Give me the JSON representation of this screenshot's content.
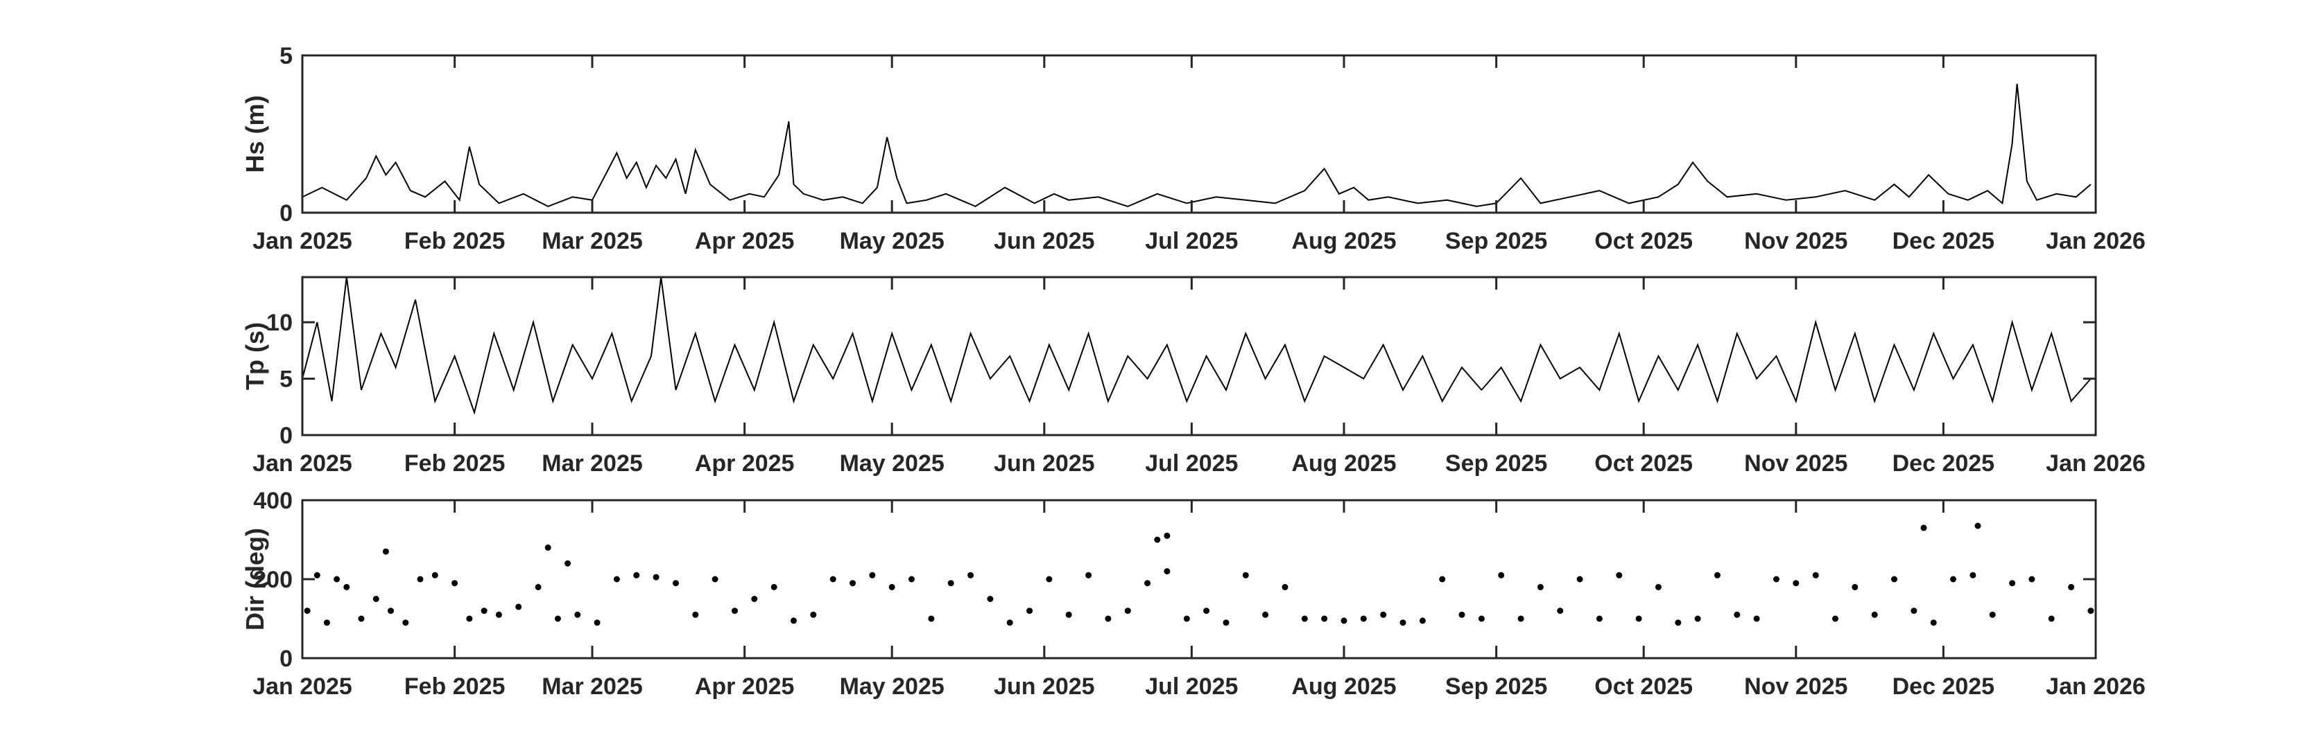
{
  "chart_data": [
    {
      "type": "line",
      "ylabel": "Hs (m)",
      "ylim": [
        0,
        5
      ],
      "yticks": [
        0,
        5
      ],
      "xlim": [
        "2025-01-01",
        "2026-01-01"
      ],
      "xtick_labels": [
        "Jan 2025",
        "Feb 2025",
        "Mar 2025",
        "Apr 2025",
        "May 2025",
        "Jun 2025",
        "Jul 2025",
        "Aug 2025",
        "Sep 2025",
        "Oct 2025",
        "Nov 2025",
        "Dec 2025",
        "Jan 2026"
      ],
      "color": "#000000",
      "series": [
        {
          "x": [
            "2025-01-01",
            "2025-01-05",
            "2025-01-10",
            "2025-01-14",
            "2025-01-16",
            "2025-01-18",
            "2025-01-20",
            "2025-01-23",
            "2025-01-26",
            "2025-01-30",
            "2025-02-02",
            "2025-02-04",
            "2025-02-06",
            "2025-02-10",
            "2025-02-15",
            "2025-02-20",
            "2025-02-25",
            "2025-03-01",
            "2025-03-04",
            "2025-03-06",
            "2025-03-08",
            "2025-03-10",
            "2025-03-12",
            "2025-03-14",
            "2025-03-16",
            "2025-03-18",
            "2025-03-20",
            "2025-03-22",
            "2025-03-25",
            "2025-03-29",
            "2025-04-02",
            "2025-04-05",
            "2025-04-08",
            "2025-04-10",
            "2025-04-11",
            "2025-04-13",
            "2025-04-17",
            "2025-04-21",
            "2025-04-25",
            "2025-04-28",
            "2025-04-30",
            "2025-05-02",
            "2025-05-04",
            "2025-05-08",
            "2025-05-12",
            "2025-05-18",
            "2025-05-24",
            "2025-05-30",
            "2025-06-03",
            "2025-06-06",
            "2025-06-12",
            "2025-06-18",
            "2025-06-24",
            "2025-06-30",
            "2025-07-06",
            "2025-07-12",
            "2025-07-18",
            "2025-07-24",
            "2025-07-28",
            "2025-07-31",
            "2025-08-03",
            "2025-08-06",
            "2025-08-10",
            "2025-08-16",
            "2025-08-22",
            "2025-08-28",
            "2025-09-01",
            "2025-09-06",
            "2025-09-10",
            "2025-09-16",
            "2025-09-22",
            "2025-09-28",
            "2025-10-04",
            "2025-10-08",
            "2025-10-11",
            "2025-10-14",
            "2025-10-18",
            "2025-10-24",
            "2025-10-30",
            "2025-11-05",
            "2025-11-11",
            "2025-11-17",
            "2025-11-21",
            "2025-11-24",
            "2025-11-28",
            "2025-12-02",
            "2025-12-06",
            "2025-12-10",
            "2025-12-13",
            "2025-12-15",
            "2025-12-16",
            "2025-12-18",
            "2025-12-20",
            "2025-12-24",
            "2025-12-28",
            "2025-12-31"
          ],
          "y": [
            0.5,
            0.8,
            0.4,
            1.1,
            1.8,
            1.2,
            1.6,
            0.7,
            0.5,
            1.0,
            0.4,
            2.1,
            0.9,
            0.3,
            0.6,
            0.2,
            0.5,
            0.4,
            1.3,
            1.9,
            1.1,
            1.6,
            0.8,
            1.5,
            1.1,
            1.7,
            0.6,
            2.0,
            0.9,
            0.4,
            0.6,
            0.5,
            1.2,
            2.9,
            0.9,
            0.6,
            0.4,
            0.5,
            0.3,
            0.8,
            2.4,
            1.1,
            0.3,
            0.4,
            0.6,
            0.2,
            0.8,
            0.3,
            0.6,
            0.4,
            0.5,
            0.2,
            0.6,
            0.3,
            0.5,
            0.4,
            0.3,
            0.7,
            1.4,
            0.6,
            0.8,
            0.4,
            0.5,
            0.3,
            0.4,
            0.2,
            0.3,
            1.1,
            0.3,
            0.5,
            0.7,
            0.3,
            0.5,
            0.9,
            1.6,
            1.0,
            0.5,
            0.6,
            0.4,
            0.5,
            0.7,
            0.4,
            0.9,
            0.5,
            1.2,
            0.6,
            0.4,
            0.7,
            0.3,
            2.2,
            4.1,
            1.0,
            0.4,
            0.6,
            0.5,
            0.9
          ]
        }
      ]
    },
    {
      "type": "line",
      "ylabel": "Tp (s)",
      "ylim": [
        0,
        14
      ],
      "yticks": [
        0,
        5,
        10
      ],
      "xlim": [
        "2025-01-01",
        "2026-01-01"
      ],
      "xtick_labels": [
        "Jan 2025",
        "Feb 2025",
        "Mar 2025",
        "Apr 2025",
        "May 2025",
        "Jun 2025",
        "Jul 2025",
        "Aug 2025",
        "Sep 2025",
        "Oct 2025",
        "Nov 2025",
        "Dec 2025",
        "Jan 2026"
      ],
      "color": "#000000",
      "series": [
        {
          "x": [
            "2025-01-01",
            "2025-01-04",
            "2025-01-07",
            "2025-01-10",
            "2025-01-13",
            "2025-01-17",
            "2025-01-20",
            "2025-01-24",
            "2025-01-28",
            "2025-02-01",
            "2025-02-05",
            "2025-02-09",
            "2025-02-13",
            "2025-02-17",
            "2025-02-21",
            "2025-02-25",
            "2025-03-01",
            "2025-03-05",
            "2025-03-09",
            "2025-03-13",
            "2025-03-15",
            "2025-03-18",
            "2025-03-22",
            "2025-03-26",
            "2025-03-30",
            "2025-04-03",
            "2025-04-07",
            "2025-04-11",
            "2025-04-15",
            "2025-04-19",
            "2025-04-23",
            "2025-04-27",
            "2025-05-01",
            "2025-05-05",
            "2025-05-09",
            "2025-05-13",
            "2025-05-17",
            "2025-05-21",
            "2025-05-25",
            "2025-05-29",
            "2025-06-02",
            "2025-06-06",
            "2025-06-10",
            "2025-06-14",
            "2025-06-18",
            "2025-06-22",
            "2025-06-26",
            "2025-06-30",
            "2025-07-04",
            "2025-07-08",
            "2025-07-12",
            "2025-07-16",
            "2025-07-20",
            "2025-07-24",
            "2025-07-28",
            "2025-08-01",
            "2025-08-05",
            "2025-08-09",
            "2025-08-13",
            "2025-08-17",
            "2025-08-21",
            "2025-08-25",
            "2025-08-29",
            "2025-09-02",
            "2025-09-06",
            "2025-09-10",
            "2025-09-14",
            "2025-09-18",
            "2025-09-22",
            "2025-09-26",
            "2025-09-30",
            "2025-10-04",
            "2025-10-08",
            "2025-10-12",
            "2025-10-16",
            "2025-10-20",
            "2025-10-24",
            "2025-10-28",
            "2025-11-01",
            "2025-11-05",
            "2025-11-09",
            "2025-11-13",
            "2025-11-17",
            "2025-11-21",
            "2025-11-25",
            "2025-11-29",
            "2025-12-03",
            "2025-12-07",
            "2025-12-11",
            "2025-12-15",
            "2025-12-19",
            "2025-12-23",
            "2025-12-27",
            "2025-12-31"
          ],
          "y": [
            5,
            10,
            3,
            14,
            4,
            9,
            6,
            12,
            3,
            7,
            2,
            9,
            4,
            10,
            3,
            8,
            5,
            9,
            3,
            7,
            14,
            4,
            9,
            3,
            8,
            4,
            10,
            3,
            8,
            5,
            9,
            3,
            9,
            4,
            8,
            3,
            9,
            5,
            7,
            3,
            8,
            4,
            9,
            3,
            7,
            5,
            8,
            3,
            7,
            4,
            9,
            5,
            8,
            3,
            7,
            6,
            5,
            8,
            4,
            7,
            3,
            6,
            4,
            6,
            3,
            8,
            5,
            6,
            4,
            9,
            3,
            7,
            4,
            8,
            3,
            9,
            5,
            7,
            3,
            10,
            4,
            9,
            3,
            8,
            4,
            9,
            5,
            8,
            3,
            10,
            4,
            9,
            3,
            5
          ]
        }
      ]
    },
    {
      "type": "scatter",
      "ylabel": "Dir (deg)",
      "ylim": [
        0,
        400
      ],
      "yticks": [
        0,
        200,
        400
      ],
      "xlim": [
        "2025-01-01",
        "2026-01-01"
      ],
      "xtick_labels": [
        "Jan 2025",
        "Feb 2025",
        "Mar 2025",
        "Apr 2025",
        "May 2025",
        "Jun 2025",
        "Jul 2025",
        "Aug 2025",
        "Sep 2025",
        "Oct 2025",
        "Nov 2025",
        "Dec 2025",
        "Jan 2026"
      ],
      "color": "#000000",
      "series": [
        {
          "x": [
            "2025-01-02",
            "2025-01-04",
            "2025-01-06",
            "2025-01-08",
            "2025-01-10",
            "2025-01-13",
            "2025-01-16",
            "2025-01-19",
            "2025-01-22",
            "2025-01-25",
            "2025-01-28",
            "2025-02-01",
            "2025-02-04",
            "2025-02-07",
            "2025-02-10",
            "2025-02-14",
            "2025-02-18",
            "2025-02-22",
            "2025-02-26",
            "2025-03-02",
            "2025-03-06",
            "2025-03-10",
            "2025-03-14",
            "2025-03-18",
            "2025-03-22",
            "2025-03-26",
            "2025-03-30",
            "2025-04-03",
            "2025-04-07",
            "2025-04-11",
            "2025-04-15",
            "2025-04-19",
            "2025-04-23",
            "2025-04-27",
            "2025-05-01",
            "2025-05-05",
            "2025-05-09",
            "2025-05-13",
            "2025-05-17",
            "2025-05-21",
            "2025-05-25",
            "2025-05-29",
            "2025-06-02",
            "2025-06-06",
            "2025-06-10",
            "2025-06-14",
            "2025-06-18",
            "2025-06-22",
            "2025-06-26",
            "2025-06-30",
            "2025-07-04",
            "2025-07-08",
            "2025-07-12",
            "2025-07-16",
            "2025-07-20",
            "2025-07-24",
            "2025-07-28",
            "2025-08-01",
            "2025-08-05",
            "2025-08-09",
            "2025-08-13",
            "2025-08-17",
            "2025-08-21",
            "2025-08-25",
            "2025-08-29",
            "2025-09-02",
            "2025-09-06",
            "2025-09-10",
            "2025-09-14",
            "2025-09-18",
            "2025-09-22",
            "2025-09-26",
            "2025-09-30",
            "2025-10-04",
            "2025-10-08",
            "2025-10-12",
            "2025-10-16",
            "2025-10-20",
            "2025-10-24",
            "2025-10-28",
            "2025-11-01",
            "2025-11-05",
            "2025-11-09",
            "2025-11-13",
            "2025-11-17",
            "2025-11-21",
            "2025-11-25",
            "2025-11-29",
            "2025-12-03",
            "2025-12-07",
            "2025-12-11",
            "2025-12-15",
            "2025-12-19",
            "2025-12-23",
            "2025-12-27",
            "2025-12-31",
            "2025-01-18",
            "2025-02-20",
            "2025-02-24",
            "2025-06-24",
            "2025-06-26",
            "2025-11-27",
            "2025-12-08"
          ],
          "y": [
            120,
            210,
            90,
            200,
            180,
            100,
            150,
            120,
            90,
            200,
            210,
            190,
            100,
            120,
            110,
            130,
            180,
            100,
            110,
            90,
            200,
            210,
            205,
            190,
            110,
            200,
            120,
            150,
            180,
            95,
            110,
            200,
            190,
            210,
            180,
            200,
            100,
            190,
            210,
            150,
            90,
            120,
            200,
            110,
            210,
            100,
            120,
            190,
            220,
            100,
            120,
            90,
            210,
            110,
            180,
            100,
            100,
            95,
            100,
            110,
            90,
            95,
            200,
            110,
            100,
            210,
            100,
            180,
            120,
            200,
            100,
            210,
            100,
            180,
            90,
            100,
            210,
            110,
            100,
            200,
            190,
            210,
            100,
            180,
            110,
            200,
            120,
            90,
            200,
            210,
            110,
            190,
            200,
            100,
            180,
            120,
            270,
            280,
            240,
            300,
            310,
            330,
            335
          ]
        }
      ]
    }
  ]
}
